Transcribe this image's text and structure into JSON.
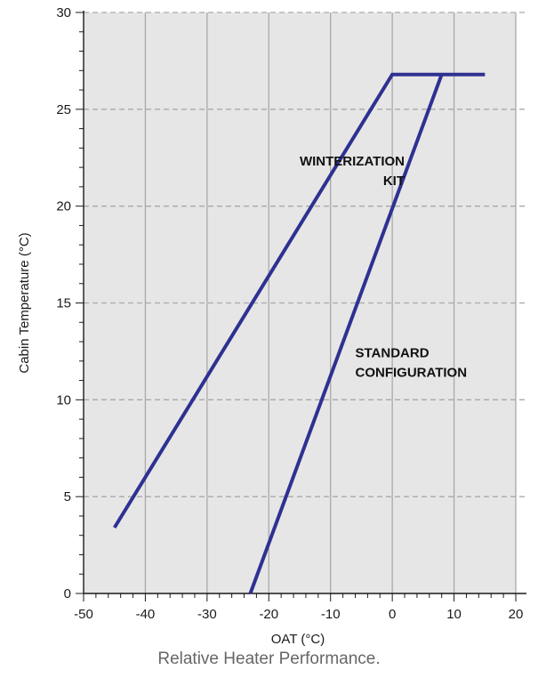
{
  "caption": "Relative Heater Performance.",
  "chart_data": {
    "type": "line",
    "title": "",
    "xlabel": "OAT (°C)",
    "ylabel": "Cabin Temperature (°C)",
    "xlim": [
      -50,
      20
    ],
    "ylim": [
      0,
      30
    ],
    "x_ticks": [
      -50,
      -40,
      -30,
      -20,
      -10,
      0,
      10,
      20
    ],
    "y_ticks": [
      0,
      5,
      10,
      15,
      20,
      25,
      30
    ],
    "x_tick_labels": [
      "-50",
      "-40",
      "-30",
      "-20",
      "-10",
      "0",
      "10",
      "20"
    ],
    "y_tick_labels": [
      "0",
      "5",
      "10",
      "15",
      "20",
      "25",
      "30"
    ],
    "grid": true,
    "background_color": "#e6e6e6",
    "line_color": "#2e3192",
    "series": [
      {
        "x": [
          -45,
          0,
          15
        ],
        "y": [
          3.4,
          26.8,
          26.8
        ]
      },
      {
        "x": [
          -23,
          8
        ],
        "y": [
          0,
          26.8
        ]
      }
    ],
    "annotations": [
      {
        "lines": [
          "WINTERIZATION",
          "KIT"
        ],
        "x": 2,
        "y": 22.1,
        "align": "end"
      },
      {
        "lines": [
          "STANDARD",
          "CONFIGURATION"
        ],
        "x": -6,
        "y": 12.2,
        "align": "start"
      }
    ]
  }
}
